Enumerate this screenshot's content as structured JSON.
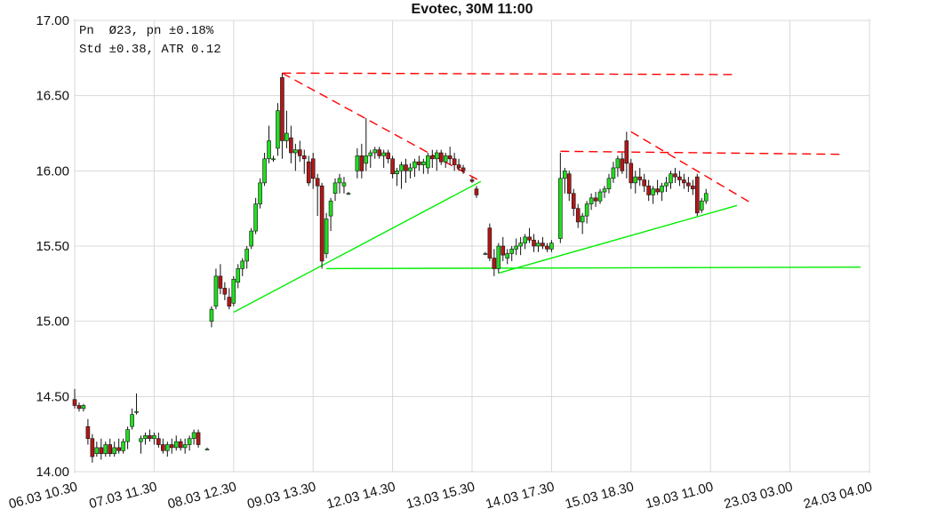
{
  "chart_data": {
    "type": "candlestick",
    "title": "Evotec, 30M 11:00",
    "info": [
      "Pn  Ø23, pn ±0.18%",
      "Std ±0.38, ATR 0.12"
    ],
    "up_color": "#22dd22",
    "down_color": "#b01818",
    "grid": true,
    "ylim": [
      14,
      17
    ],
    "yticks": [
      {
        "value": 14,
        "label": "14.00"
      },
      {
        "value": 14.5,
        "label": "14.50"
      },
      {
        "value": 15,
        "label": "15.00"
      },
      {
        "value": 15.5,
        "label": "15.50"
      },
      {
        "value": 16,
        "label": "16.00"
      },
      {
        "value": 16.5,
        "label": "16.50"
      },
      {
        "value": 17,
        "label": "17.00"
      }
    ],
    "xlim": [
      0,
      180
    ],
    "xticks": [
      {
        "value": 0,
        "label": "06.03 10.30"
      },
      {
        "value": 18,
        "label": "07.03 11.30"
      },
      {
        "value": 36,
        "label": "08.03 12.30"
      },
      {
        "value": 54,
        "label": "09.03 13.30"
      },
      {
        "value": 72,
        "label": "12.03 14.30"
      },
      {
        "value": 90,
        "label": "13.03 15.30"
      },
      {
        "value": 108,
        "label": "14.03 17.30"
      },
      {
        "value": 126,
        "label": "15.03 18.30"
      },
      {
        "value": 144,
        "label": "19.03 11.00"
      },
      {
        "value": 162,
        "label": "23.03 03.00"
      },
      {
        "value": 180,
        "label": "24.03 04.00"
      }
    ],
    "x": [
      0,
      1,
      2,
      3,
      4,
      5,
      6,
      7,
      8,
      9,
      10,
      11,
      12,
      13,
      14,
      15,
      16,
      17,
      18,
      19,
      20,
      21,
      22,
      23,
      24,
      25,
      26,
      27,
      28,
      30,
      31,
      32,
      33,
      34,
      35,
      36,
      37,
      38,
      39,
      40,
      41,
      42,
      43,
      44,
      45,
      46,
      47,
      48,
      49,
      50,
      51,
      52,
      53,
      54,
      55,
      56,
      57,
      58,
      59,
      60,
      61,
      62,
      64,
      65,
      66,
      67,
      68,
      69,
      70,
      71,
      72,
      73,
      74,
      75,
      76,
      77,
      78,
      79,
      80,
      81,
      82,
      83,
      84,
      85,
      86,
      87,
      88,
      90,
      91,
      93,
      94,
      95,
      96,
      97,
      98,
      99,
      100,
      101,
      102,
      103,
      104,
      105,
      106,
      107,
      108,
      110,
      111,
      112,
      113,
      114,
      115,
      116,
      117,
      118,
      119,
      120,
      121,
      122,
      123,
      124,
      125,
      126,
      127,
      128,
      129,
      130,
      131,
      132,
      133,
      134,
      135,
      136,
      137,
      138,
      139,
      140,
      141,
      142,
      143
    ],
    "ohlc": [
      [
        14.48,
        14.55,
        14.42,
        14.44
      ],
      [
        14.44,
        14.46,
        14.4,
        14.42
      ],
      [
        14.42,
        14.45,
        14.4,
        14.44
      ],
      [
        14.3,
        14.35,
        14.18,
        14.22
      ],
      [
        14.22,
        14.25,
        14.06,
        14.1
      ],
      [
        14.12,
        14.2,
        14.1,
        14.16
      ],
      [
        14.16,
        14.22,
        14.08,
        14.12
      ],
      [
        14.12,
        14.2,
        14.1,
        14.18
      ],
      [
        14.18,
        14.22,
        14.1,
        14.12
      ],
      [
        14.12,
        14.2,
        14.1,
        14.16
      ],
      [
        14.16,
        14.22,
        14.12,
        14.14
      ],
      [
        14.14,
        14.22,
        14.12,
        14.2
      ],
      [
        14.2,
        14.3,
        14.15,
        14.28
      ],
      [
        14.3,
        14.42,
        14.28,
        14.38
      ],
      [
        14.4,
        14.52,
        14.38,
        14.4
      ],
      [
        14.2,
        14.24,
        14.12,
        14.22
      ],
      [
        14.22,
        14.26,
        14.18,
        14.24
      ],
      [
        14.24,
        14.28,
        14.2,
        14.22
      ],
      [
        14.22,
        14.26,
        14.18,
        14.24
      ],
      [
        14.22,
        14.26,
        14.16,
        14.18
      ],
      [
        14.18,
        14.22,
        14.12,
        14.14
      ],
      [
        14.14,
        14.2,
        14.1,
        14.18
      ],
      [
        14.18,
        14.22,
        14.12,
        14.16
      ],
      [
        14.16,
        14.24,
        14.14,
        14.2
      ],
      [
        14.2,
        14.22,
        14.14,
        14.16
      ],
      [
        14.16,
        14.22,
        14.12,
        14.18
      ],
      [
        14.18,
        14.24,
        14.14,
        14.22
      ],
      [
        14.22,
        14.28,
        14.18,
        14.26
      ],
      [
        14.26,
        14.28,
        14.16,
        14.18
      ],
      [
        14.15,
        14.16,
        14.15,
        14.15
      ],
      [
        15.0,
        15.1,
        14.96,
        15.08
      ],
      [
        15.1,
        15.35,
        15.08,
        15.3
      ],
      [
        15.3,
        15.38,
        15.18,
        15.22
      ],
      [
        15.22,
        15.26,
        15.14,
        15.18
      ],
      [
        15.16,
        15.22,
        15.08,
        15.1
      ],
      [
        15.12,
        15.3,
        15.1,
        15.28
      ],
      [
        15.26,
        15.38,
        15.22,
        15.35
      ],
      [
        15.35,
        15.42,
        15.3,
        15.4
      ],
      [
        15.4,
        15.5,
        15.35,
        15.48
      ],
      [
        15.5,
        15.62,
        15.48,
        15.6
      ],
      [
        15.6,
        15.82,
        15.58,
        15.78
      ],
      [
        15.78,
        15.95,
        15.75,
        15.92
      ],
      [
        15.92,
        16.12,
        15.9,
        16.08
      ],
      [
        16.08,
        16.3,
        16.05,
        16.2
      ],
      [
        16.08,
        16.1,
        16.06,
        16.08
      ],
      [
        16.15,
        16.45,
        16.1,
        16.4
      ],
      [
        16.62,
        16.65,
        16.08,
        16.2
      ],
      [
        16.2,
        16.4,
        16.15,
        16.25
      ],
      [
        16.22,
        16.3,
        16.05,
        16.12
      ],
      [
        16.12,
        16.18,
        16.0,
        16.14
      ],
      [
        16.14,
        16.2,
        16.06,
        16.1
      ],
      [
        16.1,
        16.14,
        15.98,
        16.08
      ],
      [
        16.06,
        16.1,
        15.9,
        15.92
      ],
      [
        16.08,
        16.12,
        15.88,
        15.95
      ],
      [
        15.95,
        15.98,
        15.7,
        15.9
      ],
      [
        15.9,
        15.92,
        15.35,
        15.4
      ],
      [
        15.45,
        15.72,
        15.42,
        15.68
      ],
      [
        15.7,
        15.82,
        15.6,
        15.8
      ],
      [
        15.85,
        15.95,
        15.8,
        15.92
      ],
      [
        15.92,
        15.98,
        15.85,
        15.95
      ],
      [
        15.9,
        15.96,
        15.85,
        15.92
      ],
      [
        15.85,
        15.86,
        15.84,
        15.85
      ],
      [
        16.0,
        16.15,
        15.95,
        16.1
      ],
      [
        16.1,
        16.18,
        15.95,
        16.0
      ],
      [
        16.05,
        16.35,
        16.0,
        16.1
      ],
      [
        16.1,
        16.14,
        16.02,
        16.12
      ],
      [
        16.12,
        16.16,
        16.08,
        16.14
      ],
      [
        16.14,
        16.16,
        16.08,
        16.1
      ],
      [
        16.1,
        16.14,
        16.02,
        16.12
      ],
      [
        16.12,
        16.14,
        16.05,
        16.08
      ],
      [
        16.08,
        16.1,
        15.95,
        15.98
      ],
      [
        15.98,
        16.02,
        15.9,
        16.0
      ],
      [
        16.0,
        16.06,
        15.88,
        16.04
      ],
      [
        16.04,
        16.08,
        15.92,
        16.0
      ],
      [
        16.0,
        16.05,
        15.95,
        16.02
      ],
      [
        16.02,
        16.08,
        15.96,
        16.06
      ],
      [
        16.06,
        16.1,
        16.0,
        16.04
      ],
      [
        16.04,
        16.08,
        15.98,
        16.06
      ],
      [
        16.02,
        16.12,
        15.98,
        16.1
      ],
      [
        16.1,
        16.14,
        16.02,
        16.08
      ],
      [
        16.08,
        16.14,
        16.0,
        16.12
      ],
      [
        16.12,
        16.14,
        16.04,
        16.06
      ],
      [
        16.06,
        16.12,
        16.02,
        16.1
      ],
      [
        16.1,
        16.16,
        16.04,
        16.08
      ],
      [
        16.08,
        16.12,
        16.0,
        16.04
      ],
      [
        16.04,
        16.08,
        16.0,
        16.02
      ],
      [
        16.02,
        16.04,
        15.98,
        16.0
      ],
      [
        15.94,
        15.96,
        15.92,
        15.93
      ],
      [
        15.88,
        15.9,
        15.82,
        15.84
      ],
      [
        15.45,
        15.46,
        15.44,
        15.45
      ],
      [
        15.62,
        15.65,
        15.4,
        15.42
      ],
      [
        15.42,
        15.48,
        15.3,
        15.35
      ],
      [
        15.35,
        15.52,
        15.32,
        15.5
      ],
      [
        15.5,
        15.56,
        15.4,
        15.44
      ],
      [
        15.42,
        15.48,
        15.38,
        15.45
      ],
      [
        15.45,
        15.5,
        15.4,
        15.48
      ],
      [
        15.48,
        15.55,
        15.44,
        15.5
      ],
      [
        15.5,
        15.56,
        15.44,
        15.52
      ],
      [
        15.52,
        15.58,
        15.48,
        15.56
      ],
      [
        15.56,
        15.62,
        15.52,
        15.54
      ],
      [
        15.54,
        15.58,
        15.46,
        15.5
      ],
      [
        15.5,
        15.54,
        15.46,
        15.52
      ],
      [
        15.52,
        15.56,
        15.48,
        15.5
      ],
      [
        15.5,
        15.52,
        15.46,
        15.48
      ],
      [
        15.48,
        15.54,
        15.46,
        15.52
      ],
      [
        15.55,
        16.12,
        15.52,
        15.95
      ],
      [
        15.95,
        16.02,
        15.85,
        16.0
      ],
      [
        15.98,
        16.0,
        15.8,
        15.85
      ],
      [
        15.85,
        15.88,
        15.7,
        15.75
      ],
      [
        15.75,
        15.78,
        15.62,
        15.66
      ],
      [
        15.66,
        15.72,
        15.58,
        15.7
      ],
      [
        15.7,
        15.8,
        15.65,
        15.78
      ],
      [
        15.78,
        15.85,
        15.74,
        15.82
      ],
      [
        15.82,
        15.86,
        15.76,
        15.8
      ],
      [
        15.8,
        15.88,
        15.78,
        15.86
      ],
      [
        15.86,
        15.9,
        15.82,
        15.88
      ],
      [
        15.88,
        15.98,
        15.85,
        15.95
      ],
      [
        15.95,
        16.06,
        15.92,
        16.02
      ],
      [
        16.02,
        16.1,
        15.96,
        16.08
      ],
      [
        16.08,
        16.12,
        15.98,
        16.0
      ],
      [
        16.2,
        16.26,
        15.95,
        16.05
      ],
      [
        16.05,
        16.08,
        15.88,
        15.92
      ],
      [
        15.92,
        16.0,
        15.85,
        15.96
      ],
      [
        15.96,
        16.02,
        15.9,
        15.94
      ],
      [
        15.94,
        15.98,
        15.86,
        15.9
      ],
      [
        15.9,
        15.94,
        15.8,
        15.84
      ],
      [
        15.84,
        15.9,
        15.78,
        15.88
      ],
      [
        15.88,
        15.94,
        15.84,
        15.86
      ],
      [
        15.86,
        15.92,
        15.8,
        15.9
      ],
      [
        15.9,
        15.96,
        15.86,
        15.92
      ],
      [
        15.92,
        16.0,
        15.88,
        15.98
      ],
      [
        15.98,
        16.02,
        15.92,
        15.96
      ],
      [
        15.96,
        16.0,
        15.9,
        15.94
      ],
      [
        15.94,
        15.98,
        15.88,
        15.92
      ],
      [
        15.92,
        15.96,
        15.86,
        15.9
      ],
      [
        15.9,
        15.94,
        15.84,
        15.88
      ],
      [
        15.96,
        15.98,
        15.7,
        15.72
      ],
      [
        15.74,
        15.82,
        15.72,
        15.8
      ],
      [
        15.8,
        15.88,
        15.78,
        15.85
      ]
    ],
    "trendlines": [
      {
        "color": "#ff0000",
        "dashed": true,
        "x": [
          47,
          150
        ],
        "y": [
          16.65,
          16.64
        ]
      },
      {
        "color": "#ff0000",
        "dashed": true,
        "x": [
          47,
          92
        ],
        "y": [
          16.65,
          15.93
        ]
      },
      {
        "color": "#ff0000",
        "dashed": true,
        "x": [
          110,
          174
        ],
        "y": [
          16.13,
          16.11
        ]
      },
      {
        "color": "#ff0000",
        "dashed": true,
        "x": [
          126,
          153
        ],
        "y": [
          16.26,
          15.79
        ]
      },
      {
        "color": "#00ee00",
        "dashed": false,
        "x": [
          36,
          92
        ],
        "y": [
          15.06,
          15.93
        ]
      },
      {
        "color": "#00ee00",
        "dashed": false,
        "x": [
          57,
          178
        ],
        "y": [
          15.35,
          15.36
        ]
      },
      {
        "color": "#00ee00",
        "dashed": false,
        "x": [
          96,
          150
        ],
        "y": [
          15.32,
          15.77
        ]
      }
    ]
  }
}
